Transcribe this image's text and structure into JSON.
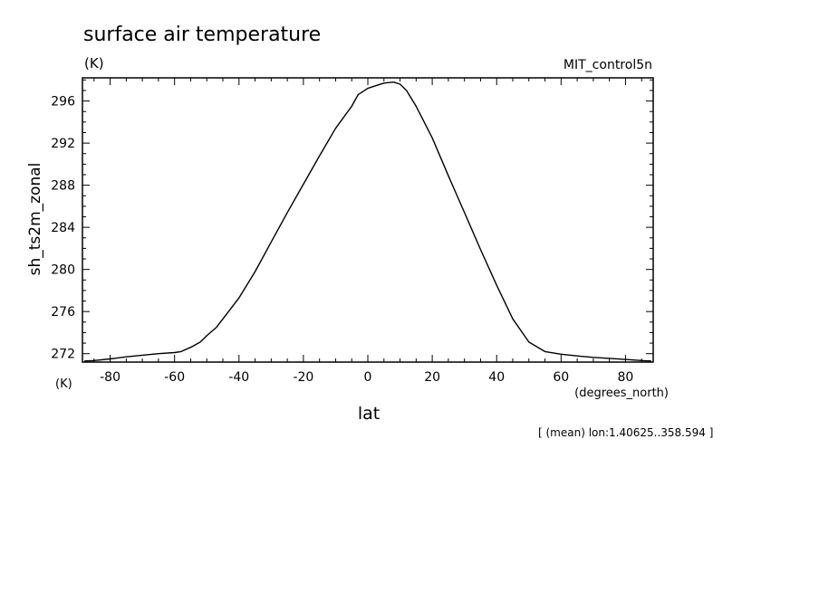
{
  "chart_data": {
    "type": "line",
    "title": "surface air temperature",
    "units_label": "(K)",
    "run_label": "MIT_control5n",
    "ylabel": "sh_ts2m_zonal",
    "y_units_label": "(K)",
    "xlabel": "lat",
    "x_units_label": "(degrees_north)",
    "footnote": "[ (mean) lon:1.40625..358.594 ]",
    "xlim": [
      -88.6,
      88.6
    ],
    "ylim": [
      271.2,
      298.2
    ],
    "xticks": [
      -80,
      -60,
      -40,
      -20,
      0,
      20,
      40,
      60,
      80
    ],
    "xtick_labels": [
      "-80",
      "-60",
      "-40",
      "-20",
      "0",
      "20",
      "40",
      "60",
      "80"
    ],
    "yticks": [
      272,
      276,
      280,
      284,
      288,
      292,
      296
    ],
    "ytick_labels": [
      "272",
      "276",
      "280",
      "284",
      "288",
      "292",
      "296"
    ],
    "grid": false,
    "series": [
      {
        "x": [
          -88,
          -85,
          -80,
          -75,
          -70,
          -65,
          -60,
          -58,
          -55,
          -52,
          -50,
          -47,
          -44,
          -40,
          -35,
          -30,
          -25,
          -20,
          -15,
          -10,
          -5,
          -3,
          0,
          3,
          5,
          8,
          10,
          12,
          15,
          20,
          25,
          30,
          35,
          40,
          45,
          50,
          55,
          60,
          63,
          66,
          70,
          75,
          80,
          85,
          88
        ],
        "y": [
          271.3,
          271.35,
          271.5,
          271.7,
          271.85,
          272.0,
          272.1,
          272.2,
          272.6,
          273.1,
          273.7,
          274.5,
          275.7,
          277.3,
          279.8,
          282.6,
          285.4,
          288.1,
          290.8,
          293.4,
          295.5,
          296.6,
          297.2,
          297.5,
          297.7,
          297.8,
          297.6,
          297.0,
          295.5,
          292.5,
          288.9,
          285.4,
          281.9,
          278.5,
          275.3,
          273.1,
          272.2,
          271.95,
          271.85,
          271.75,
          271.65,
          271.55,
          271.45,
          271.35,
          271.3
        ]
      }
    ]
  }
}
